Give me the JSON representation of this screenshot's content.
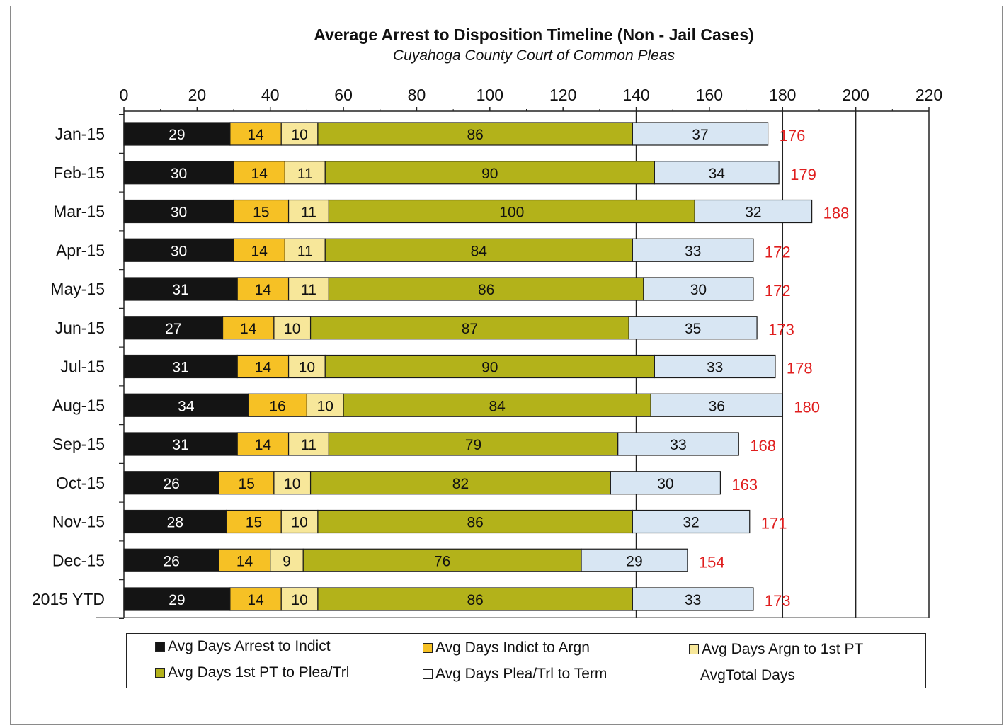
{
  "chart_data": {
    "type": "bar",
    "orientation": "horizontal",
    "stacked": true,
    "title": "Average Arrest to Disposition  Timeline (Non - Jail Cases)",
    "subtitle": "Cuyahoga County Court of Common Pleas",
    "categories": [
      "Jan-15",
      "Feb-15",
      "Mar-15",
      "Apr-15",
      "May-15",
      "Jun-15",
      "Jul-15",
      "Aug-15",
      "Sep-15",
      "Oct-15",
      "Nov-15",
      "Dec-15",
      "2015 YTD"
    ],
    "xlim": [
      0,
      220
    ],
    "xticks": [
      "0",
      "20",
      "40",
      "60",
      "80",
      "100",
      "120",
      "140",
      "160",
      "180",
      "200",
      "220"
    ],
    "axis_position": "top",
    "grid": "vertical at 140, 180, 200, 220",
    "legend_position": "bottom",
    "series": [
      {
        "name": "Avg Days Arrest to Indict",
        "color": "#141414",
        "label_color": "#ffffff",
        "values": [
          29,
          30,
          30,
          30,
          31,
          27,
          31,
          34,
          31,
          26,
          28,
          26,
          29
        ]
      },
      {
        "name": "Avg Days Indict to Argn",
        "color": "#f6c125",
        "label_color": "#111111",
        "values": [
          14,
          14,
          15,
          14,
          14,
          14,
          14,
          16,
          14,
          15,
          15,
          14,
          14
        ]
      },
      {
        "name": "Avg Days Argn to 1st PT",
        "color": "#f7e79a",
        "label_color": "#111111",
        "values": [
          10,
          11,
          11,
          11,
          11,
          10,
          10,
          10,
          11,
          10,
          10,
          9,
          10
        ]
      },
      {
        "name": "Avg Days 1st PT to Plea/Trl",
        "color": "#b3b21a",
        "label_color": "#111111",
        "values": [
          86,
          90,
          100,
          84,
          86,
          87,
          90,
          84,
          79,
          82,
          86,
          76,
          86
        ]
      },
      {
        "name": "Avg Days Plea/Trl to Term",
        "color": "#d8e6f3",
        "label_color": "#111111",
        "values": [
          37,
          34,
          32,
          33,
          30,
          35,
          33,
          36,
          33,
          30,
          32,
          29,
          33
        ]
      }
    ],
    "totals": {
      "name": "AvgTotal Days",
      "color": "#e01e1e",
      "values": [
        176,
        179,
        188,
        172,
        172,
        173,
        178,
        180,
        168,
        163,
        171,
        154,
        173
      ]
    }
  }
}
